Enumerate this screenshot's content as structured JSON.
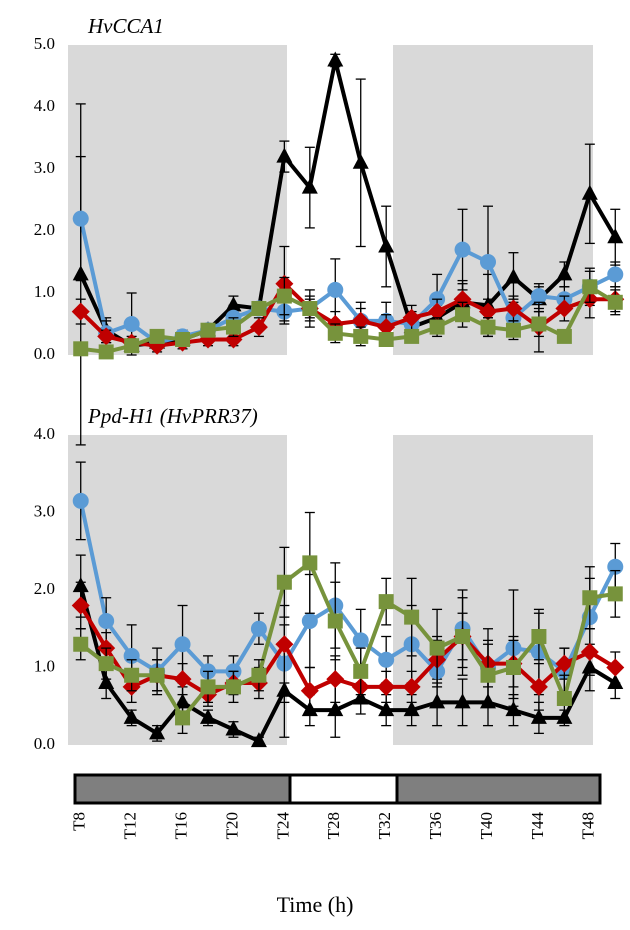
{
  "x_axis": {
    "title": "Time (h)",
    "categories": [
      "T8",
      null,
      "T12",
      null,
      "T16",
      null,
      "T20",
      null,
      "T24",
      null,
      "T28",
      null,
      "T32",
      null,
      "T36",
      null,
      "T40",
      null,
      "T44",
      null,
      "T48",
      null
    ]
  },
  "chart_data": [
    {
      "type": "line",
      "title": "HvCCA1",
      "ylim": [
        0,
        5
      ],
      "yticks": [
        {
          "value": 0,
          "label": "0.0"
        },
        {
          "value": 1,
          "label": "1.0"
        },
        {
          "value": 2,
          "label": "2.0"
        },
        {
          "value": 3,
          "label": "3.0"
        },
        {
          "value": 4,
          "label": "4.0"
        },
        {
          "value": 5,
          "label": "5.0"
        }
      ],
      "series": [
        {
          "color": "#000000",
          "marker": "triangle",
          "values": [
            1.3,
            0.4,
            0.15,
            0.2,
            0.25,
            0.4,
            0.8,
            0.75,
            3.2,
            2.7,
            4.75,
            3.1,
            1.75,
            0.45,
            0.6,
            0.85,
            0.8,
            1.25,
            0.9,
            1.3,
            2.6,
            1.9
          ],
          "errors": [
            2.75,
            0.2,
            0.1,
            0.1,
            0.1,
            0.1,
            0.15,
            0.1,
            0.25,
            0.65,
            0.1,
            1.35,
            0.65,
            0.1,
            0.2,
            0.3,
            0.5,
            0.4,
            0.2,
            0.2,
            0.8,
            0.45
          ]
        },
        {
          "color": "#5b9bd5",
          "marker": "circle",
          "values": [
            2.2,
            0.35,
            0.5,
            0.2,
            0.3,
            0.4,
            0.6,
            0.75,
            0.7,
            0.75,
            1.05,
            0.55,
            0.55,
            0.5,
            0.9,
            1.7,
            1.5,
            0.6,
            0.95,
            0.9,
            1.1,
            1.3
          ],
          "errors": [
            1.0,
            0.2,
            0.5,
            0.1,
            0.1,
            0.1,
            0.2,
            0.1,
            0.2,
            0.3,
            0.5,
            0.3,
            0.3,
            0.2,
            0.4,
            0.65,
            0.9,
            0.3,
            0.2,
            0.2,
            0.3,
            0.2
          ]
        },
        {
          "color": "#c00000",
          "marker": "diamond",
          "values": [
            0.7,
            0.3,
            0.2,
            0.15,
            0.2,
            0.25,
            0.25,
            0.45,
            1.15,
            0.75,
            0.5,
            0.55,
            0.45,
            0.6,
            0.7,
            0.9,
            0.7,
            0.75,
            0.45,
            0.75,
            0.9,
            0.9
          ],
          "errors": [
            0.2,
            0.1,
            0.1,
            0.1,
            0.1,
            0.1,
            0.1,
            0.15,
            0.6,
            0.2,
            0.2,
            0.2,
            0.2,
            0.2,
            0.2,
            0.3,
            0.2,
            0.2,
            0.4,
            0.2,
            0.3,
            0.2
          ]
        },
        {
          "color": "#77933c",
          "marker": "square",
          "values": [
            0.1,
            0.05,
            0.15,
            0.3,
            0.25,
            0.4,
            0.45,
            0.75,
            0.95,
            0.75,
            0.35,
            0.3,
            0.25,
            0.3,
            0.45,
            0.65,
            0.45,
            0.4,
            0.5,
            0.3,
            1.1,
            0.85
          ],
          "errors": [
            0.1,
            0.05,
            0.1,
            0.1,
            0.1,
            0.1,
            0.15,
            0.1,
            0.3,
            0.15,
            0.15,
            0.15,
            0.1,
            0.1,
            0.15,
            0.2,
            0.15,
            0.15,
            0.2,
            0.1,
            0.25,
            0.2
          ]
        }
      ]
    },
    {
      "type": "line",
      "title": "Ppd-H1 (HvPRR37)",
      "ylim": [
        0,
        4
      ],
      "yticks": [
        {
          "value": 0,
          "label": "0.0"
        },
        {
          "value": 1,
          "label": "1.0"
        },
        {
          "value": 2,
          "label": "2.0"
        },
        {
          "value": 3,
          "label": "3.0"
        },
        {
          "value": 4,
          "label": "4.0"
        }
      ],
      "series": [
        {
          "color": "#000000",
          "marker": "triangle",
          "values": [
            2.05,
            0.8,
            0.35,
            0.15,
            0.55,
            0.35,
            0.2,
            0.05,
            0.7,
            0.45,
            0.45,
            0.6,
            0.45,
            0.45,
            0.55,
            0.55,
            0.55,
            0.45,
            0.35,
            0.35,
            1.0,
            0.8
          ],
          "errors": [
            0.4,
            0.2,
            0.1,
            0.1,
            0.2,
            0.1,
            0.1,
            0.05,
            0.6,
            0.2,
            0.35,
            0.2,
            0.2,
            0.2,
            0.3,
            0.3,
            0.3,
            0.2,
            0.2,
            0.1,
            0.3,
            0.2
          ]
        },
        {
          "color": "#5b9bd5",
          "marker": "circle",
          "values": [
            3.15,
            1.6,
            1.15,
            0.95,
            1.3,
            0.95,
            0.95,
            1.5,
            1.05,
            1.6,
            1.8,
            1.35,
            1.1,
            1.3,
            0.95,
            1.5,
            1.0,
            1.25,
            1.2,
            0.95,
            1.65,
            2.3
          ],
          "errors": [
            0.5,
            0.3,
            0.4,
            0.3,
            0.5,
            0.2,
            0.2,
            0.2,
            0.5,
            0.6,
            0.55,
            0.4,
            0.3,
            0.5,
            0.4,
            0.5,
            0.5,
            0.75,
            0.55,
            0.3,
            0.5,
            0.3
          ]
        },
        {
          "color": "#c00000",
          "marker": "diamond",
          "values": [
            1.8,
            1.25,
            0.75,
            0.9,
            0.85,
            0.65,
            0.8,
            0.8,
            1.3,
            0.7,
            0.85,
            0.75,
            0.75,
            0.75,
            1.1,
            1.4,
            1.05,
            1.05,
            0.75,
            1.05,
            1.2,
            1.0
          ],
          "errors": [
            0.3,
            0.2,
            0.2,
            0.2,
            0.2,
            0.15,
            0.15,
            0.2,
            0.5,
            0.3,
            0.3,
            0.2,
            0.2,
            0.2,
            0.3,
            0.3,
            0.3,
            0.3,
            0.3,
            0.2,
            0.3,
            0.2
          ]
        },
        {
          "color": "#77933c",
          "marker": "square",
          "values": [
            1.3,
            1.05,
            0.9,
            0.9,
            0.35,
            0.75,
            0.75,
            0.9,
            2.1,
            2.35,
            1.6,
            0.95,
            1.85,
            1.65,
            1.25,
            1.4,
            0.9,
            1.0,
            1.4,
            0.6,
            1.9,
            1.95
          ],
          "errors": [
            0.2,
            0.2,
            0.2,
            0.2,
            0.2,
            0.2,
            0.2,
            0.2,
            0.45,
            0.65,
            0.5,
            0.3,
            0.3,
            0.5,
            0.5,
            0.5,
            0.4,
            0.4,
            0.3,
            0.3,
            0.4,
            0.3
          ]
        }
      ]
    }
  ]
}
